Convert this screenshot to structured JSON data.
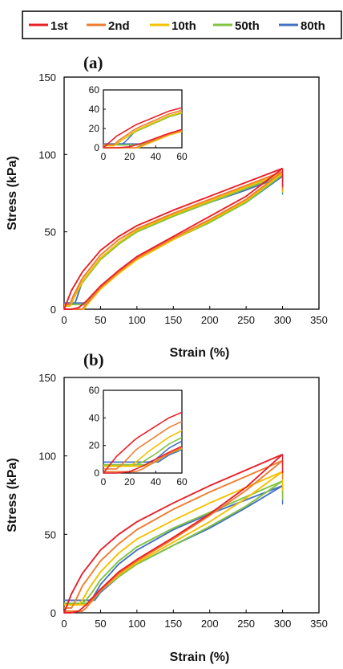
{
  "legend": [
    {
      "label": "1st",
      "color": "#e8202a"
    },
    {
      "label": "2nd",
      "color": "#ee7d31"
    },
    {
      "label": "10th",
      "color": "#f5c000"
    },
    {
      "label": "50th",
      "color": "#82c341"
    },
    {
      "label": "80th",
      "color": "#4472c4"
    }
  ],
  "chart_data": [
    {
      "type": "line",
      "panel_label": "(a)",
      "xlabel": "Strain (%)",
      "ylabel": "Stress (kPa)",
      "xlim": [
        0,
        350
      ],
      "ylim": [
        0,
        150
      ],
      "xticks": [
        0,
        50,
        100,
        150,
        200,
        250,
        300,
        350
      ],
      "yticks": [
        0,
        50,
        100,
        150
      ],
      "grid": false,
      "legend_position": "top",
      "series": [
        {
          "name": "1st",
          "color": "#e8202a",
          "loading": {
            "x": [
              0,
              10,
              25,
              50,
              75,
              100,
              150,
              200,
              250,
              300
            ],
            "y": [
              0,
              12,
              24,
              38,
              47,
              54,
              64,
              73,
              82,
              91
            ]
          },
          "unloading": {
            "x": [
              300,
              250,
              200,
              150,
              100,
              75,
              50,
              30,
              20,
              10,
              0
            ],
            "y": [
              91,
              73,
              60,
              47,
              34,
              25,
              15,
              5,
              1,
              0,
              0
            ]
          }
        },
        {
          "name": "2nd",
          "color": "#ee7d31",
          "loading": {
            "x": [
              0,
              8,
              12,
              25,
              50,
              75,
              100,
              150,
              200,
              250,
              300
            ],
            "y": [
              3,
              3,
              8,
              20,
              35,
              45,
              52,
              62,
              71,
              80,
              89
            ]
          },
          "unloading": {
            "x": [
              300,
              250,
              200,
              150,
              100,
              75,
              50,
              30,
              25,
              0
            ],
            "y": [
              89,
              71,
              58,
              46,
              33,
              24,
              14,
              3,
              0,
              0
            ]
          }
        },
        {
          "name": "10th",
          "color": "#f5c000",
          "loading": {
            "x": [
              0,
              8,
              12,
              25,
              50,
              75,
              100,
              150,
              200,
              250,
              300
            ],
            "y": [
              2,
              2,
              6,
              18,
              33,
              43,
              51,
              61,
              70,
              79,
              88
            ]
          },
          "unloading": {
            "x": [
              300,
              250,
              200,
              150,
              100,
              75,
              50,
              30,
              27,
              0
            ],
            "y": [
              88,
              70,
              57,
              45,
              32,
              23,
              13,
              2,
              0,
              0
            ]
          }
        },
        {
          "name": "50th",
          "color": "#82c341",
          "loading": {
            "x": [
              0,
              10,
              13,
              25,
              50,
              75,
              100,
              150,
              200,
              250,
              300
            ],
            "y": [
              3,
              3,
              7,
              17,
              32,
              42,
              50,
              60,
              69,
              78,
              87
            ]
          },
          "unloading": {
            "x": [
              300,
              250,
              200,
              150,
              100,
              75,
              50,
              30,
              28,
              0
            ],
            "y": [
              87,
              69,
              56,
              45,
              32,
              24,
              14,
              4,
              3,
              3
            ]
          }
        },
        {
          "name": "80th",
          "color": "#4472c4",
          "loading": {
            "x": [
              0,
              15,
              18,
              25,
              50,
              75,
              100,
              150,
              200,
              250,
              300
            ],
            "y": [
              4,
              4,
              8,
              18,
              33,
              43,
              51,
              61,
              69,
              77,
              86
            ]
          },
          "unloading": {
            "x": [
              300,
              250,
              200,
              150,
              100,
              75,
              50,
              30,
              28,
              0
            ],
            "y": [
              86,
              69,
              57,
              46,
              33,
              24,
              14,
              4,
              4,
              4
            ]
          }
        }
      ],
      "inset": {
        "xlim": [
          0,
          60
        ],
        "ylim": [
          0,
          60
        ],
        "xticks": [
          0,
          20,
          40,
          60
        ],
        "yticks": [
          0,
          20,
          40,
          60
        ],
        "series_visible_range": "0-60% strain"
      }
    },
    {
      "type": "line",
      "panel_label": "(b)",
      "xlabel": "Strain (%)",
      "ylabel": "Stress (kPa)",
      "xlim": [
        0,
        350
      ],
      "ylim": [
        0,
        150
      ],
      "xticks": [
        0,
        50,
        100,
        150,
        200,
        250,
        300,
        350
      ],
      "yticks": [
        0,
        50,
        100,
        150
      ],
      "grid": false,
      "series": [
        {
          "name": "1st",
          "color": "#e8202a",
          "loading": {
            "x": [
              0,
              10,
              25,
              50,
              75,
              100,
              150,
              200,
              250,
              300
            ],
            "y": [
              0,
              12,
              25,
              40,
              50,
              58,
              70,
              81,
              91,
              101
            ]
          },
          "unloading": {
            "x": [
              300,
              250,
              200,
              150,
              100,
              75,
              50,
              30,
              20,
              10,
              0
            ],
            "y": [
              101,
              80,
              63,
              48,
              34,
              26,
              15,
              5,
              1,
              0,
              0
            ]
          }
        },
        {
          "name": "2nd",
          "color": "#ee7d31",
          "loading": {
            "x": [
              0,
              10,
              15,
              25,
              50,
              75,
              100,
              150,
              200,
              250,
              300
            ],
            "y": [
              3,
              3,
              7,
              17,
              33,
              44,
              53,
              66,
              77,
              87,
              97
            ]
          },
          "unloading": {
            "x": [
              300,
              250,
              200,
              150,
              100,
              75,
              50,
              30,
              25,
              0
            ],
            "y": [
              97,
              78,
              62,
              47,
              33,
              25,
              14,
              3,
              1,
              1
            ]
          }
        },
        {
          "name": "10th",
          "color": "#f5c000",
          "loading": {
            "x": [
              0,
              20,
              25,
              35,
              50,
              75,
              100,
              150,
              200,
              250,
              300
            ],
            "y": [
              5,
              5,
              8,
              16,
              26,
              38,
              47,
              59,
              70,
              80,
              90
            ]
          },
          "unloading": {
            "x": [
              300,
              250,
              200,
              150,
              100,
              75,
              50,
              35,
              30,
              0
            ],
            "y": [
              90,
              73,
              58,
              45,
              32,
              24,
              14,
              6,
              5,
              5
            ]
          }
        },
        {
          "name": "50th",
          "color": "#82c341",
          "loading": {
            "x": [
              0,
              25,
              30,
              40,
              50,
              75,
              100,
              150,
              200,
              250,
              300
            ],
            "y": [
              6,
              6,
              8,
              14,
              21,
              33,
              42,
              54,
              64,
              74,
              84
            ]
          },
          "unloading": {
            "x": [
              300,
              250,
              200,
              150,
              100,
              75,
              50,
              40,
              35,
              0
            ],
            "y": [
              84,
              68,
              55,
              43,
              31,
              23,
              14,
              8,
              6,
              6
            ]
          }
        },
        {
          "name": "80th",
          "color": "#4472c4",
          "loading": {
            "x": [
              0,
              35,
              40,
              50,
              75,
              100,
              150,
              200,
              250,
              300
            ],
            "y": [
              8,
              8,
              10,
              18,
              31,
              40,
              53,
              63,
              72,
              81
            ]
          },
          "unloading": {
            "x": [
              300,
              250,
              200,
              150,
              100,
              75,
              50,
              42,
              38,
              0
            ],
            "y": [
              81,
              67,
              54,
              43,
              31,
              23,
              13,
              8,
              8,
              8
            ]
          }
        }
      ],
      "inset": {
        "xlim": [
          0,
          60
        ],
        "ylim": [
          0,
          60
        ],
        "xticks": [
          0,
          20,
          40,
          60
        ],
        "yticks": [
          0,
          20,
          40,
          60
        ],
        "series_visible_range": "0-60% strain"
      }
    }
  ]
}
